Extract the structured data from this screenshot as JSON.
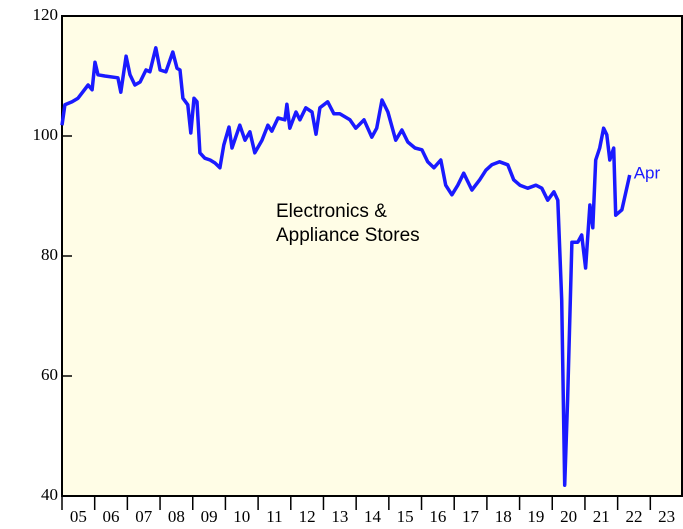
{
  "chart_data": {
    "type": "line",
    "annotations": [
      "Electronics &",
      "Appliance Stores"
    ],
    "end_label": "Apr",
    "series": [
      {
        "name": "Electronics & Appliance Stores",
        "color": "#1a1aff",
        "x": [
          2005.0,
          2005.09,
          2005.31,
          2005.49,
          2005.8,
          2005.92,
          2006.01,
          2006.1,
          2006.31,
          2006.71,
          2006.8,
          2006.96,
          2007.08,
          2007.23,
          2007.39,
          2007.57,
          2007.69,
          2007.87,
          2008.0,
          2008.18,
          2008.39,
          2008.52,
          2008.61,
          2008.7,
          2008.85,
          2008.94,
          2009.04,
          2009.13,
          2009.22,
          2009.37,
          2009.53,
          2009.68,
          2009.83,
          2009.95,
          2010.11,
          2010.2,
          2010.44,
          2010.6,
          2010.75,
          2010.9,
          2011.12,
          2011.3,
          2011.42,
          2011.61,
          2011.82,
          2011.88,
          2011.97,
          2012.16,
          2012.28,
          2012.46,
          2012.65,
          2012.77,
          2012.89,
          2013.13,
          2013.32,
          2013.5,
          2013.81,
          2013.99,
          2014.24,
          2014.48,
          2014.63,
          2014.79,
          2014.97,
          2015.21,
          2015.4,
          2015.58,
          2015.8,
          2016.01,
          2016.19,
          2016.38,
          2016.59,
          2016.74,
          2016.93,
          2017.11,
          2017.29,
          2017.54,
          2017.78,
          2017.97,
          2018.15,
          2018.39,
          2018.64,
          2018.82,
          2019.01,
          2019.25,
          2019.5,
          2019.68,
          2019.86,
          2020.05,
          2020.17,
          2020.29,
          2020.38,
          2020.47,
          2020.6,
          2020.78,
          2020.9,
          2021.02,
          2021.15,
          2021.24,
          2021.33,
          2021.45,
          2021.57,
          2021.67,
          2021.76,
          2021.88,
          2021.94,
          2022.13,
          2022.37
        ],
        "values": [
          101.8,
          105.2,
          105.7,
          106.3,
          108.5,
          107.7,
          112.3,
          110.2,
          110.0,
          109.7,
          107.3,
          113.3,
          110.2,
          108.5,
          109.0,
          111.0,
          110.7,
          114.7,
          111.0,
          110.7,
          114.0,
          111.3,
          111.0,
          106.3,
          105.2,
          100.5,
          106.3,
          105.7,
          97.2,
          96.3,
          96.0,
          95.5,
          94.7,
          98.5,
          101.5,
          98.0,
          101.8,
          99.3,
          100.7,
          97.2,
          99.3,
          101.8,
          100.8,
          103.0,
          102.7,
          105.3,
          101.3,
          104.0,
          102.7,
          104.7,
          104.0,
          100.3,
          104.7,
          105.7,
          103.7,
          103.7,
          102.7,
          101.3,
          102.7,
          99.8,
          101.3,
          106.0,
          104.0,
          99.3,
          101.0,
          99.0,
          98.0,
          97.7,
          95.7,
          94.7,
          96.0,
          91.8,
          90.2,
          91.8,
          93.8,
          91.0,
          92.7,
          94.3,
          95.2,
          95.7,
          95.2,
          92.7,
          91.8,
          91.3,
          91.8,
          91.3,
          89.3,
          90.7,
          89.3,
          72.7,
          41.8,
          56.0,
          82.3,
          82.3,
          83.5,
          78.0,
          88.5,
          84.7,
          96.0,
          98.0,
          101.3,
          100.2,
          96.0,
          98.0,
          86.8,
          87.7,
          93.5
        ]
      }
    ],
    "xlim": [
      2005,
      2024
    ],
    "xticks": [
      {
        "value": 2005,
        "label": "05"
      },
      {
        "value": 2006,
        "label": "06"
      },
      {
        "value": 2007,
        "label": "07"
      },
      {
        "value": 2008,
        "label": "08"
      },
      {
        "value": 2009,
        "label": "09"
      },
      {
        "value": 2010,
        "label": "10"
      },
      {
        "value": 2011,
        "label": "11"
      },
      {
        "value": 2012,
        "label": "12"
      },
      {
        "value": 2013,
        "label": "13"
      },
      {
        "value": 2014,
        "label": "14"
      },
      {
        "value": 2015,
        "label": "15"
      },
      {
        "value": 2016,
        "label": "16"
      },
      {
        "value": 2017,
        "label": "17"
      },
      {
        "value": 2018,
        "label": "18"
      },
      {
        "value": 2019,
        "label": "19"
      },
      {
        "value": 2020,
        "label": "20"
      },
      {
        "value": 2021,
        "label": "21"
      },
      {
        "value": 2022,
        "label": "22"
      },
      {
        "value": 2023,
        "label": "23"
      }
    ],
    "ylim": [
      40,
      120
    ],
    "yticks": [
      40,
      60,
      80,
      100,
      120
    ],
    "background": "#fffde6"
  }
}
